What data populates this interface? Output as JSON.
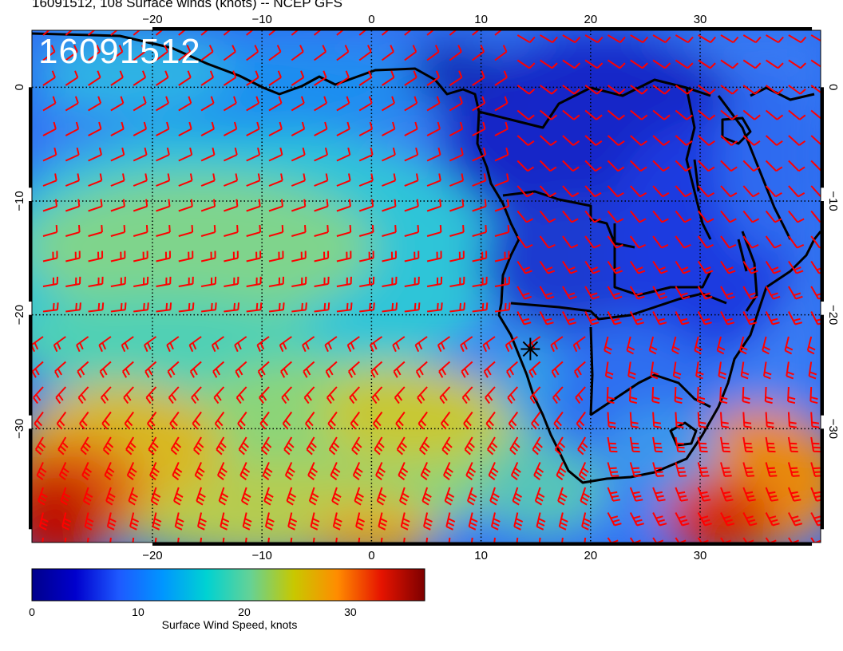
{
  "title": "16091512, 108 Surface winds (knots) -- NCEP GFS",
  "stamp": "16091512",
  "map": {
    "lon_range": [
      -31,
      41
    ],
    "lat_range": [
      -40,
      5
    ],
    "lon_ticks": [
      "−20",
      "−10",
      "0",
      "10",
      "20",
      "30"
    ],
    "lat_ticks": [
      "0",
      "−10",
      "−20",
      "−30"
    ],
    "grid": "dotted",
    "barb_color": "#ff0000",
    "coast_color": "#000000",
    "marker": {
      "name": "target-marker",
      "lon": 14.5,
      "lat": -23
    }
  },
  "colorbar": {
    "label": "Surface Wind Speed, knots",
    "ticks": [
      "0",
      "10",
      "20",
      "30"
    ],
    "range": [
      0,
      37
    ],
    "colors": [
      "#00008b",
      "#0000cd",
      "#1e5aff",
      "#0096ff",
      "#00d2d2",
      "#64d296",
      "#c8c800",
      "#ff8c00",
      "#e61400",
      "#7d0000"
    ]
  }
}
